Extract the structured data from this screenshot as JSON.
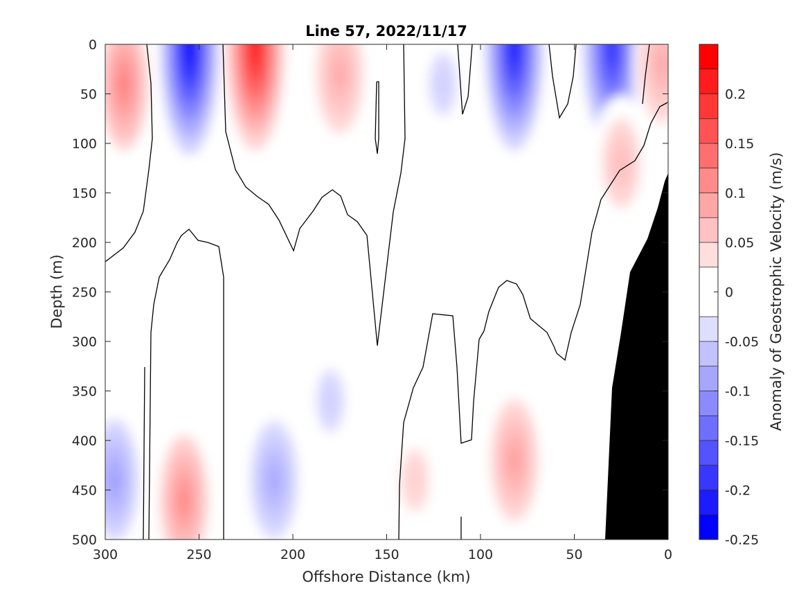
{
  "chart_data": {
    "type": "heatmap",
    "title": "Line 57, 2022/11/17",
    "xlabel": "Offshore Distance (km)",
    "ylabel": "Depth (m)",
    "colorbar_label": "Anomaly of Geostrophic Velocity (m/s)",
    "x_reversed": true,
    "y_reversed": true,
    "xlim": [
      0,
      300
    ],
    "ylim": [
      0,
      500
    ],
    "x_ticks": [
      300,
      250,
      200,
      150,
      100,
      50,
      0
    ],
    "y_ticks": [
      0,
      50,
      100,
      150,
      200,
      250,
      300,
      350,
      400,
      450,
      500
    ],
    "colorbar_ticks": [
      "0.2",
      "0.15",
      "0.1",
      "0.05",
      "0",
      "-0.05",
      "-0.1",
      "-0.15",
      "-0.2",
      "-0.25"
    ],
    "colorbar_range": [
      -0.25,
      0.25
    ],
    "contour_levels": [
      -0.25,
      -0.225,
      -0.2,
      -0.175,
      -0.15,
      -0.125,
      -0.1,
      -0.075,
      -0.05,
      -0.025,
      0.025,
      0.05,
      0.075,
      0.1,
      0.125,
      0.15,
      0.175,
      0.2,
      0.225,
      0.25
    ],
    "zero_contour_color": "#000000",
    "bathymetry_color": "#000000",
    "grid": false,
    "features": [
      {
        "x": 290,
        "y": 40,
        "v": 0.12
      },
      {
        "x": 255,
        "y": 5,
        "v": -0.24
      },
      {
        "x": 220,
        "y": 5,
        "v": 0.22
      },
      {
        "x": 175,
        "y": 30,
        "v": 0.08
      },
      {
        "x": 120,
        "y": 40,
        "v": -0.04
      },
      {
        "x": 82,
        "y": 5,
        "v": -0.22
      },
      {
        "x": 30,
        "y": 5,
        "v": -0.2
      },
      {
        "x": 3,
        "y": 20,
        "v": 0.08
      },
      {
        "x": 25,
        "y": 120,
        "v": 0.06
      },
      {
        "x": 295,
        "y": 440,
        "v": -0.09
      },
      {
        "x": 258,
        "y": 460,
        "v": 0.11
      },
      {
        "x": 210,
        "y": 440,
        "v": -0.08
      },
      {
        "x": 180,
        "y": 360,
        "v": -0.04
      },
      {
        "x": 135,
        "y": 440,
        "v": 0.04
      },
      {
        "x": 82,
        "y": 420,
        "v": 0.09
      }
    ]
  }
}
